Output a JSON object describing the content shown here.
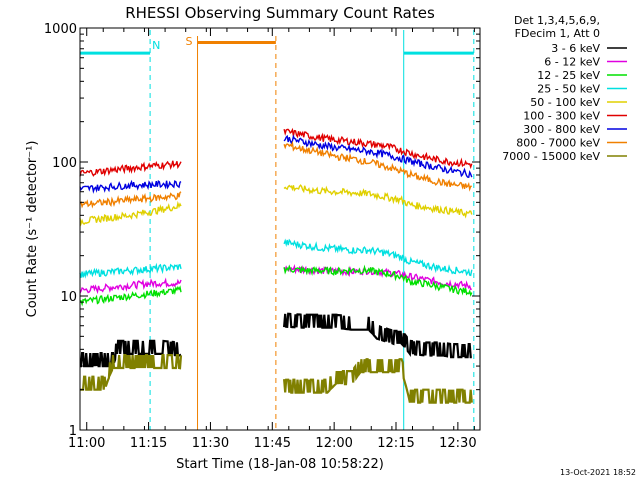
{
  "chart_data": {
    "type": "line",
    "title": "RHESSI Observing Summary Count Rates",
    "xlabel": "Start Time (18-Jan-08 10:58:22)",
    "ylabel": "Count Rate (s⁻¹ detector⁻¹)",
    "x_unit": "minutes after 10:58:22",
    "xlim": [
      0,
      97
    ],
    "ylim": [
      1,
      1000
    ],
    "yscale": "log",
    "x_ticks": [
      "11:00",
      "11:15",
      "11:30",
      "11:45",
      "12:00",
      "12:15",
      "12:30"
    ],
    "y_ticks": [
      "1",
      "10",
      "100",
      "1000"
    ],
    "y_tick_values": [
      1,
      10,
      100,
      1000
    ],
    "grid": false,
    "legend_header": [
      "Det 1,3,4,5,6,9,",
      "FDecim 1, Att 0"
    ],
    "legend_position": "top-right",
    "series": [
      {
        "name": "3 - 6 keV",
        "color": "#000000",
        "x": [
          0,
          8,
          9,
          20,
          24,
          50,
          54,
          62,
          66,
          70,
          72,
          74,
          76,
          78,
          80,
          84,
          88,
          90,
          95
        ],
        "y": [
          3.0,
          3.0,
          3.7,
          3.7,
          3.6,
          5.9,
          5.8,
          5.8,
          5.6,
          5.6,
          4.8,
          4.6,
          4.4,
          4.4,
          3.7,
          3.6,
          3.6,
          3.5,
          3.5
        ]
      },
      {
        "name": "6 - 12 keV",
        "color": "#e000e0",
        "x": [
          0,
          6,
          12,
          18,
          24,
          50,
          54,
          58,
          62,
          66,
          70,
          74,
          78,
          80,
          84,
          88,
          92,
          95
        ],
        "y": [
          11,
          11.5,
          12,
          12.5,
          12.5,
          16,
          15.8,
          15.5,
          15.3,
          15.2,
          15.5,
          15,
          14.5,
          14,
          13.2,
          12.6,
          12.2,
          11.8
        ]
      },
      {
        "name": "12 - 25 keV",
        "color": "#00e000",
        "x": [
          0,
          6,
          12,
          18,
          24,
          50,
          54,
          58,
          62,
          66,
          70,
          74,
          78,
          80,
          84,
          88,
          92,
          95
        ],
        "y": [
          9,
          9.5,
          10,
          10.5,
          11,
          16,
          15.5,
          15.5,
          15.3,
          15.6,
          15.5,
          14.8,
          14,
          12.8,
          12.3,
          11.6,
          11,
          10.8
        ]
      },
      {
        "name": "25 - 50 keV",
        "color": "#00e0e0",
        "x": [
          0,
          6,
          12,
          18,
          24,
          50,
          54,
          58,
          62,
          66,
          70,
          74,
          78,
          80,
          84,
          88,
          92,
          95
        ],
        "y": [
          14.5,
          15,
          15.5,
          16,
          16.5,
          25,
          24,
          23,
          22.5,
          22,
          22,
          21,
          19.5,
          18,
          17,
          16,
          15.5,
          15
        ]
      },
      {
        "name": "50 - 100 keV",
        "color": "#e0d000",
        "x": [
          0,
          6,
          12,
          18,
          24,
          50,
          54,
          58,
          62,
          66,
          70,
          74,
          78,
          80,
          84,
          88,
          92,
          95
        ],
        "y": [
          36,
          38,
          40,
          43,
          47,
          66,
          63,
          61,
          60,
          59,
          58,
          55,
          52,
          48,
          46,
          44,
          42,
          41
        ]
      },
      {
        "name": "100 - 300 keV",
        "color": "#e00000",
        "x": [
          0,
          6,
          12,
          18,
          24,
          50,
          54,
          58,
          62,
          66,
          70,
          74,
          78,
          82,
          86,
          90,
          95
        ],
        "y": [
          82,
          86,
          90,
          94,
          97,
          168,
          160,
          152,
          146,
          142,
          137,
          132,
          122,
          112,
          105,
          100,
          96
        ]
      },
      {
        "name": "300 - 800 keV",
        "color": "#0000e0",
        "x": [
          0,
          6,
          12,
          18,
          24,
          50,
          54,
          58,
          62,
          66,
          70,
          74,
          78,
          82,
          86,
          90,
          95
        ],
        "y": [
          63,
          65,
          67,
          68,
          69,
          150,
          142,
          134,
          128,
          124,
          120,
          114,
          106,
          98,
          92,
          86,
          81
        ]
      },
      {
        "name": "800 - 7000 keV",
        "color": "#f08000",
        "x": [
          0,
          6,
          12,
          18,
          24,
          50,
          54,
          58,
          62,
          66,
          70,
          74,
          78,
          82,
          86,
          90,
          95
        ],
        "y": [
          48,
          50,
          52,
          54,
          56,
          134,
          125,
          118,
          110,
          106,
          100,
          93,
          85,
          77,
          72,
          68,
          65
        ]
      },
      {
        "name": "7000 - 15000 keV",
        "color": "#808000",
        "x": [
          0,
          6,
          8,
          10,
          18,
          24,
          50,
          60,
          62,
          66,
          68,
          78,
          80,
          95
        ],
        "y": [
          2.0,
          2.0,
          2.9,
          2.9,
          2.9,
          2.9,
          1.9,
          1.9,
          2.2,
          2.2,
          2.7,
          2.7,
          1.6,
          1.6
        ]
      }
    ],
    "attenuator_markers": [
      {
        "label": "",
        "x": 0,
        "color": "#00e0e0"
      },
      {
        "label": "N",
        "x": 17,
        "color": "#00e0e0"
      },
      {
        "label": "",
        "x": 78.5,
        "color": "#00e0e0"
      },
      {
        "label": "",
        "x": 95.5,
        "color": "#00e0e0"
      }
    ],
    "night_bars": [
      {
        "x0": 0,
        "x1": 17,
        "y": 650,
        "color": "#00e0e0"
      },
      {
        "x0": 78.5,
        "x1": 95.5,
        "y": 650,
        "color": "#00e0e0"
      }
    ],
    "saa": {
      "label": "S",
      "x0": 28.5,
      "x1": 47.5,
      "y": 780,
      "color": "#f08000"
    },
    "gap": [
      24.5,
      49.5
    ],
    "timestamp": "13-Oct-2021 18:52"
  }
}
